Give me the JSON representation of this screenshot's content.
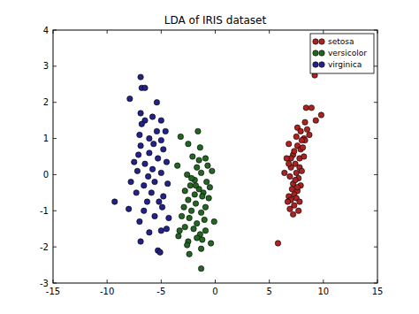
{
  "chart_data": {
    "type": "scatter",
    "title": "LDA of IRIS dataset",
    "xlim": [
      -15,
      15
    ],
    "xticks": [
      -15,
      -10,
      -5,
      0,
      5,
      10,
      15
    ],
    "ylim": [
      -3,
      4
    ],
    "yticks": [
      -3,
      -2,
      -1,
      0,
      1,
      2,
      3,
      4
    ],
    "legend": "upper right",
    "grid": false,
    "marker": "circle",
    "series": [
      {
        "name": "setosa",
        "color": "#aa2222",
        "x": [
          9.2,
          8.4,
          8.9,
          9.8,
          9.3,
          8.3,
          7.6,
          8.5,
          7.9,
          7.5,
          8.2,
          8.7,
          6.8,
          7.6,
          7.9,
          8.1,
          7.2,
          7.0,
          6.6,
          7.8,
          8.2,
          7.4,
          7.8,
          8.0,
          7.5,
          6.9,
          7.7,
          7.2,
          7.9,
          7.1,
          7.6,
          7.3,
          6.8,
          7.5,
          7.0,
          7.8,
          7.3,
          6.9,
          7.7,
          7.2,
          6.7,
          7.4,
          8.3,
          7.0,
          6.4,
          7.6,
          5.8,
          8.0,
          7.3,
          6.8
        ],
        "values": [
          2.75,
          1.85,
          1.85,
          1.65,
          1.5,
          1.45,
          1.3,
          1.25,
          1.2,
          1.05,
          1.0,
          1.1,
          0.85,
          0.8,
          0.7,
          0.75,
          0.55,
          0.45,
          0.45,
          0.45,
          0.5,
          0.3,
          0.2,
          0.1,
          0.05,
          -0.05,
          -0.1,
          -0.25,
          -0.3,
          -0.4,
          -0.45,
          -0.55,
          -0.6,
          -0.65,
          -0.7,
          -0.75,
          -0.85,
          -0.95,
          -1.0,
          -1.1,
          -0.75,
          -0.15,
          0.95,
          0.2,
          0.05,
          -0.35,
          -1.9,
          0.95,
          0.65,
          0.3
        ]
      },
      {
        "name": "versicolor",
        "color": "#226622",
        "x": [
          -3.2,
          -1.6,
          -2.5,
          -1.4,
          -2.1,
          -0.9,
          -3.5,
          -1.7,
          -0.7,
          -1.3,
          -2.6,
          -0.3,
          -1.9,
          -0.8,
          -2.3,
          -1.5,
          -1.1,
          -2.8,
          -1.9,
          -1.2,
          -2.5,
          -0.6,
          -1.8,
          -2.9,
          -0.9,
          -2.2,
          -1.3,
          -3.1,
          -2.4,
          -1.0,
          -1.7,
          -0.1,
          -2.8,
          -2.0,
          -0.9,
          -1.4,
          -1.7,
          -3.4,
          -2.5,
          -0.4,
          -1.2,
          -2.6,
          -3.3,
          -2.2,
          -1.5,
          -0.5,
          -1.8,
          -2.4,
          -1.3,
          -1.3
        ],
        "values": [
          1.05,
          1.2,
          0.85,
          0.75,
          0.5,
          0.45,
          0.25,
          0.2,
          0.25,
          0.05,
          0.0,
          0.1,
          -0.15,
          -0.2,
          -0.3,
          -0.4,
          -0.5,
          -0.45,
          -0.55,
          -0.6,
          -0.7,
          -0.65,
          -0.8,
          -0.9,
          -0.9,
          -1.0,
          -1.05,
          -1.15,
          -1.2,
          -1.25,
          -1.35,
          -1.3,
          -1.45,
          -1.5,
          -1.55,
          -1.65,
          -1.75,
          -1.7,
          -1.85,
          -1.9,
          -1.8,
          -1.95,
          -1.55,
          -0.1,
          0.4,
          -0.35,
          -0.3,
          -2.2,
          -2.05,
          -2.6
        ]
      },
      {
        "name": "virginica",
        "color": "#222288",
        "x": [
          -6.9,
          -6.8,
          -6.5,
          -7.9,
          -5.4,
          -6.9,
          -6.5,
          -5.8,
          -5.0,
          -6.8,
          -5.4,
          -4.6,
          -7.0,
          -6.1,
          -5.0,
          -6.9,
          -5.7,
          -4.8,
          -7.1,
          -6.1,
          -5.3,
          -7.5,
          -6.5,
          -4.5,
          -5.8,
          -7.2,
          -6.2,
          -5.0,
          -7.8,
          -5.6,
          -6.6,
          -4.4,
          -7.3,
          -5.9,
          -4.8,
          -6.3,
          -5.2,
          -9.3,
          -8.0,
          -4.9,
          -6.6,
          -5.6,
          -7.0,
          -4.3,
          -6.1,
          -5.0,
          -6.9,
          -4.5,
          -5.3,
          -5.1
        ],
        "values": [
          2.7,
          2.4,
          2.4,
          2.1,
          2.0,
          1.7,
          1.5,
          1.6,
          1.5,
          1.4,
          1.2,
          1.2,
          1.1,
          1.0,
          0.95,
          0.8,
          0.85,
          0.7,
          0.55,
          0.6,
          0.45,
          0.35,
          0.3,
          0.35,
          0.15,
          0.1,
          -0.05,
          0.05,
          -0.2,
          -0.2,
          -0.3,
          -0.25,
          -0.5,
          -0.5,
          -0.6,
          -0.75,
          -0.75,
          -0.75,
          -0.95,
          -0.9,
          -1.0,
          -1.15,
          -1.3,
          -1.2,
          -1.6,
          -1.55,
          -1.85,
          -1.5,
          -2.1,
          -2.15
        ]
      }
    ]
  }
}
